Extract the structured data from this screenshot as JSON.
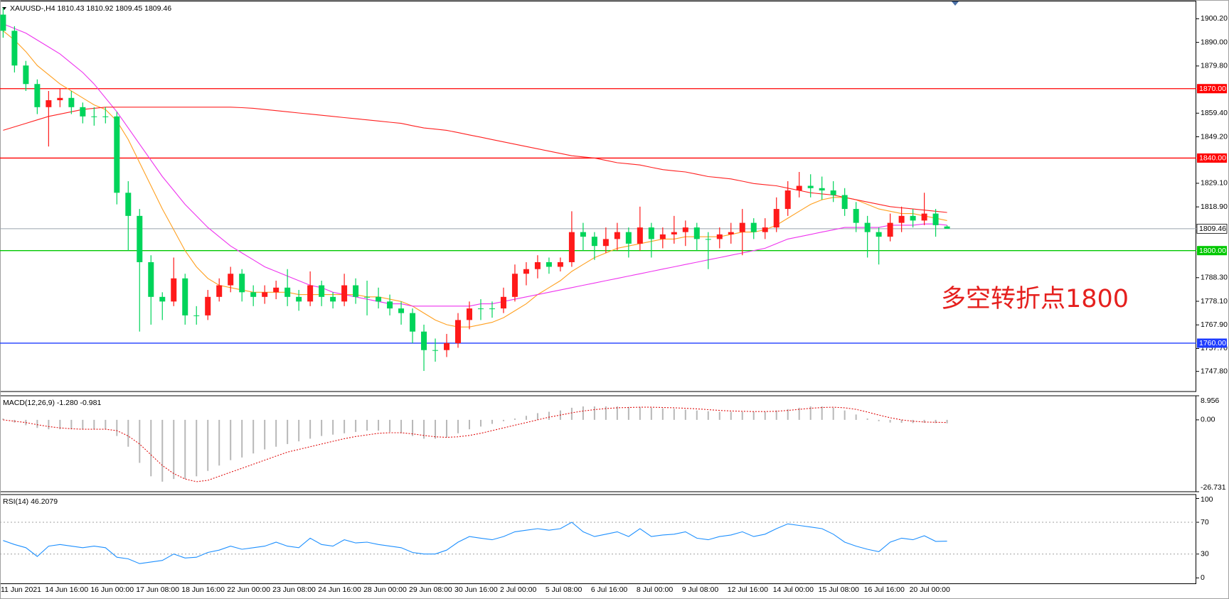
{
  "chart_data": [
    {
      "type": "candlestick",
      "title": "XAUUSD-,H4  1810.43 1810.92 1809.45 1809.46",
      "categories": [
        "11 Jun 2021",
        null,
        null,
        null,
        "14 Jun 16:00",
        null,
        null,
        null,
        "16 Jun 00:00",
        null,
        null,
        null,
        "17 Jun 08:00",
        null,
        null,
        null,
        "18 Jun 16:00",
        null,
        null,
        null,
        "22 Jun 00:00",
        null,
        null,
        null,
        "23 Jun 08:00",
        null,
        null,
        null,
        "24 Jun 16:00",
        null,
        null,
        null,
        "28 Jun 00:00",
        null,
        null,
        null,
        "29 Jun 08:00",
        null,
        null,
        null,
        "30 Jun 16:00",
        null,
        null,
        null,
        "2 Jul 00:00",
        null,
        null,
        null,
        "5 Jul 08:00",
        null,
        null,
        null,
        "6 Jul 16:00",
        null,
        null,
        null,
        "8 Jul 00:00",
        null,
        null,
        null,
        "9 Jul 08:00",
        null,
        null,
        null,
        "12 Jul 16:00",
        null,
        null,
        null,
        "14 Jul 00:00",
        null,
        null,
        null,
        "15 Jul 08:00",
        null,
        null,
        null,
        "16 Jul 16:00",
        null,
        null,
        null,
        "20 Jul 00:00",
        null,
        null,
        null
      ],
      "open": [
        1902,
        1895,
        1880,
        1872,
        1862,
        1865,
        1866,
        1862,
        1858,
        1858,
        1858,
        1825,
        1815,
        1795,
        1780,
        1778,
        1788,
        1772,
        1772,
        1780,
        1785,
        1790,
        1782,
        1780,
        1782,
        1784,
        1780,
        1778,
        1785,
        1780,
        1778,
        1785,
        1780,
        1780,
        1778,
        1775,
        1773,
        1765,
        1757,
        1757,
        1760,
        1770,
        1775,
        1775,
        1775,
        1780,
        1790,
        1792,
        1795,
        1793,
        1795,
        1808,
        1806,
        1802,
        1805,
        1808,
        1803,
        1810,
        1805,
        1807,
        1808,
        1810,
        1805,
        1805,
        1807,
        1808,
        1812,
        1808,
        1810,
        1818,
        1826,
        1828,
        1827,
        1826,
        1824,
        1818,
        1812,
        1808,
        1806,
        1812,
        1815,
        1813,
        1816,
        1810.43
      ],
      "high": [
        1905,
        1897,
        1882,
        1874,
        1869,
        1870,
        1869,
        1864,
        1862,
        1862,
        1860,
        1830,
        1818,
        1798,
        1782,
        1797,
        1790,
        1776,
        1783,
        1788,
        1793,
        1792,
        1785,
        1785,
        1787,
        1792,
        1783,
        1791,
        1787,
        1782,
        1790,
        1788,
        1787,
        1784,
        1781,
        1778,
        1775,
        1768,
        1762,
        1764,
        1773,
        1778,
        1779,
        1778,
        1784,
        1794,
        1795,
        1798,
        1797,
        1797,
        1817,
        1812,
        1808,
        1810,
        1812,
        1810,
        1819,
        1812,
        1810,
        1815,
        1813,
        1812,
        1808,
        1810,
        1812,
        1818,
        1814,
        1814,
        1823,
        1830,
        1834,
        1833,
        1832,
        1830,
        1827,
        1821,
        1815,
        1810,
        1816,
        1819,
        1818,
        1825,
        1818,
        1810.92
      ],
      "low": [
        1892,
        1877,
        1869,
        1859,
        1845,
        1862,
        1859,
        1855,
        1854,
        1855,
        1820,
        1800,
        1765,
        1768,
        1770,
        1776,
        1768,
        1768,
        1770,
        1778,
        1782,
        1778,
        1776,
        1777,
        1779,
        1776,
        1774,
        1776,
        1776,
        1775,
        1776,
        1777,
        1772,
        1775,
        1772,
        1768,
        1760,
        1748,
        1752,
        1754,
        1758,
        1766,
        1770,
        1771,
        1773,
        1778,
        1785,
        1788,
        1790,
        1791,
        1793,
        1800,
        1796,
        1799,
        1800,
        1797,
        1800,
        1797,
        1801,
        1803,
        1802,
        1800,
        1792,
        1801,
        1803,
        1798,
        1805,
        1805,
        1808,
        1815,
        1823,
        1823,
        1822,
        1821,
        1815,
        1808,
        1797,
        1794,
        1804,
        1808,
        1810,
        1811,
        1806,
        1809.45
      ],
      "close": [
        1895,
        1880,
        1872,
        1862,
        1865,
        1866,
        1862,
        1858,
        1858,
        1858,
        1825,
        1815,
        1795,
        1780,
        1778,
        1788,
        1772,
        1772,
        1780,
        1785,
        1790,
        1782,
        1780,
        1782,
        1784,
        1780,
        1778,
        1785,
        1780,
        1778,
        1785,
        1780,
        1780,
        1778,
        1775,
        1773,
        1765,
        1757,
        1757,
        1760,
        1770,
        1775,
        1775,
        1775,
        1780,
        1790,
        1792,
        1795,
        1793,
        1795,
        1808,
        1806,
        1802,
        1805,
        1808,
        1803,
        1810,
        1805,
        1807,
        1808,
        1810,
        1805,
        1805,
        1807,
        1808,
        1812,
        1808,
        1810,
        1818,
        1826,
        1828,
        1827,
        1826,
        1824,
        1818,
        1812,
        1808,
        1806,
        1812,
        1815,
        1813,
        1816,
        1811,
        1809.46
      ],
      "up_color": "#ff1a1a",
      "down_color": "#00d45a",
      "series": [
        {
          "color": "#ffa020",
          "values": [
            1895,
            1891,
            1886,
            1880,
            1876,
            1872,
            1869,
            1866,
            1863,
            1861,
            1856,
            1848,
            1838,
            1828,
            1818,
            1809,
            1800,
            1793,
            1788,
            1785,
            1784,
            1783,
            1782,
            1782,
            1782,
            1782,
            1781,
            1781,
            1781,
            1781,
            1781,
            1781,
            1780,
            1780,
            1779,
            1778,
            1776,
            1773,
            1770,
            1768,
            1767,
            1767,
            1768,
            1769,
            1771,
            1774,
            1777,
            1781,
            1784,
            1787,
            1791,
            1794,
            1797,
            1799,
            1801,
            1802,
            1803,
            1804,
            1805,
            1805,
            1806,
            1806,
            1806,
            1806,
            1807,
            1808,
            1808,
            1809,
            1811,
            1814,
            1817,
            1820,
            1822,
            1823,
            1823,
            1822,
            1820,
            1818,
            1817,
            1816,
            1816,
            1815,
            1814,
            1813
          ]
        },
        {
          "color": "#ee33ee",
          "values": [
            1898,
            1896,
            1894,
            1891,
            1888,
            1885,
            1881,
            1877,
            1872,
            1866,
            1860,
            1853,
            1846,
            1839,
            1832,
            1826,
            1820,
            1815,
            1810,
            1806,
            1802,
            1799,
            1796,
            1793,
            1791,
            1789,
            1787,
            1785,
            1784,
            1782,
            1781,
            1780,
            1779,
            1778,
            1777,
            1777,
            1776,
            1776,
            1776,
            1776,
            1776,
            1776,
            1777,
            1777,
            1778,
            1779,
            1780,
            1781,
            1782,
            1783,
            1784,
            1785,
            1786,
            1787,
            1788,
            1789,
            1790,
            1791,
            1792,
            1793,
            1794,
            1795,
            1796,
            1797,
            1798,
            1799,
            1800,
            1801,
            1803,
            1805,
            1806,
            1807,
            1808,
            1809,
            1810,
            1810,
            1810,
            1810,
            1811,
            1811,
            1811,
            1811.5,
            1811.5,
            1811
          ]
        },
        {
          "color": "#ff2020",
          "values": [
            1852,
            1853.5,
            1855,
            1856.5,
            1858,
            1859,
            1860,
            1861,
            1861.5,
            1862,
            1862,
            1862,
            1862,
            1862,
            1862,
            1862,
            1862,
            1862,
            1862,
            1862,
            1862,
            1861.8,
            1861.5,
            1861,
            1860.5,
            1860,
            1859.5,
            1859,
            1858.5,
            1858,
            1857.5,
            1857,
            1856.5,
            1856,
            1855.5,
            1855,
            1854,
            1853,
            1852.5,
            1852,
            1851,
            1850,
            1849,
            1848,
            1847,
            1846,
            1845,
            1844,
            1843,
            1842,
            1841,
            1840.5,
            1840,
            1839,
            1838,
            1837.5,
            1837,
            1836,
            1835,
            1834.5,
            1834,
            1833,
            1832,
            1831.5,
            1831,
            1830,
            1829,
            1828.5,
            1828,
            1827,
            1826,
            1825,
            1824.5,
            1824,
            1823,
            1822,
            1821,
            1820,
            1819,
            1818.5,
            1818,
            1817.5,
            1817,
            1816.5
          ]
        }
      ],
      "levels": [
        {
          "value": 1870,
          "label": "1870.00",
          "color": "#ff0000"
        },
        {
          "value": 1840,
          "label": "1840.00",
          "color": "#ff0000"
        },
        {
          "value": 1800,
          "label": "1800.00",
          "color": "#00c800"
        },
        {
          "value": 1760,
          "label": "1760.00",
          "color": "#1e3cff"
        }
      ],
      "price_line": {
        "value": 1809.46,
        "color": "#9aa4ae"
      },
      "annotation": "多空转折点1800",
      "ylim": [
        1739.1,
        1907.7
      ],
      "yticks": [
        {
          "value": 1900.2,
          "label": "1900.20"
        },
        {
          "value": 1890,
          "label": "1890.00"
        },
        {
          "value": 1879.8,
          "label": "1879.80"
        },
        {
          "value": 1859.4,
          "label": "1859.40"
        },
        {
          "value": 1849.2,
          "label": "1849.20"
        },
        {
          "value": 1829.1,
          "label": "1829.10"
        },
        {
          "value": 1818.9,
          "label": "1818.90"
        },
        {
          "value": 1788.3,
          "label": "1788.30"
        },
        {
          "value": 1778.1,
          "label": "1778.10"
        },
        {
          "value": 1767.9,
          "label": "1767.90"
        },
        {
          "value": 1757.7,
          "label": "1757.70"
        },
        {
          "value": 1747.8,
          "label": "1747.80"
        }
      ]
    },
    {
      "type": "macd",
      "title": "MACD(12,26,9) -1.280 -0.981",
      "histogram": {
        "color": "#b8b8b8",
        "values": [
          0.5,
          -1,
          -2,
          -3,
          -3.5,
          -3.5,
          -3.5,
          -3.5,
          -3.5,
          -3.5,
          -6,
          -10,
          -16,
          -21,
          -23,
          -22,
          -22,
          -21,
          -19,
          -17,
          -15,
          -14,
          -12.5,
          -11,
          -10,
          -9,
          -8,
          -7,
          -6,
          -5.5,
          -5,
          -4.5,
          -4,
          -4,
          -4.5,
          -5,
          -6,
          -7,
          -7,
          -6.5,
          -5,
          -3.5,
          -2.5,
          -1.5,
          -0.5,
          0.5,
          1.5,
          2.5,
          3,
          3.5,
          4.5,
          5,
          5,
          5,
          5,
          4.8,
          4.8,
          4.5,
          4.3,
          4.1,
          3.8,
          3.5,
          3.2,
          3,
          3,
          3,
          3,
          3,
          3.5,
          4,
          4.5,
          5,
          5,
          4.5,
          3.5,
          2,
          0.5,
          -0.5,
          -1,
          -1.1,
          -1.2,
          -1.1,
          -1.2,
          -1.28
        ]
      },
      "signal": {
        "color": "#e01010",
        "values": [
          0,
          -0.5,
          -1,
          -1.8,
          -2.5,
          -3,
          -3.3,
          -3.5,
          -3.5,
          -3.5,
          -4,
          -6,
          -9,
          -13,
          -17,
          -20,
          -22,
          -23,
          -22.5,
          -21,
          -19.5,
          -18,
          -16.5,
          -15,
          -13.5,
          -12,
          -11,
          -10,
          -9,
          -8,
          -7,
          -6.2,
          -5.6,
          -5,
          -4.8,
          -4.8,
          -5.2,
          -5.8,
          -6.3,
          -6.5,
          -6.3,
          -5.8,
          -5,
          -4,
          -3,
          -2,
          -1,
          0,
          1,
          1.8,
          2.6,
          3.3,
          3.8,
          4.2,
          4.5,
          4.6,
          4.7,
          4.7,
          4.6,
          4.5,
          4.3,
          4.1,
          3.8,
          3.5,
          3.3,
          3.2,
          3.1,
          3.1,
          3.2,
          3.5,
          3.9,
          4.3,
          4.6,
          4.7,
          4.5,
          3.9,
          2.9,
          1.8,
          0.8,
          0,
          -0.5,
          -0.8,
          -0.9,
          -0.981
        ]
      },
      "ylim": [
        -26.731,
        8.956
      ],
      "yticks": [
        8.956,
        {
          "value": 0,
          "label": "0.00"
        },
        -26.731
      ]
    },
    {
      "type": "line",
      "title": "RSI(14) 46.2079",
      "color": "#1e90ff",
      "values": [
        47,
        42,
        38,
        27,
        40,
        42,
        40,
        38,
        40,
        38,
        26,
        24,
        18,
        20,
        22,
        30,
        25,
        26,
        32,
        35,
        40,
        36,
        38,
        40,
        45,
        40,
        38,
        50,
        42,
        40,
        48,
        44,
        45,
        42,
        40,
        38,
        32,
        30,
        30,
        35,
        45,
        52,
        50,
        48,
        52,
        58,
        60,
        62,
        60,
        62,
        70,
        58,
        52,
        55,
        58,
        52,
        62,
        52,
        54,
        55,
        58,
        50,
        48,
        52,
        54,
        58,
        52,
        55,
        62,
        68,
        66,
        64,
        62,
        55,
        45,
        40,
        36,
        33,
        45,
        50,
        48,
        53,
        46,
        46.2079
      ],
      "levels": [
        70,
        30
      ],
      "ylim": [
        -6.9,
        104.9
      ],
      "yticks": [
        100,
        70,
        30,
        0
      ]
    }
  ]
}
